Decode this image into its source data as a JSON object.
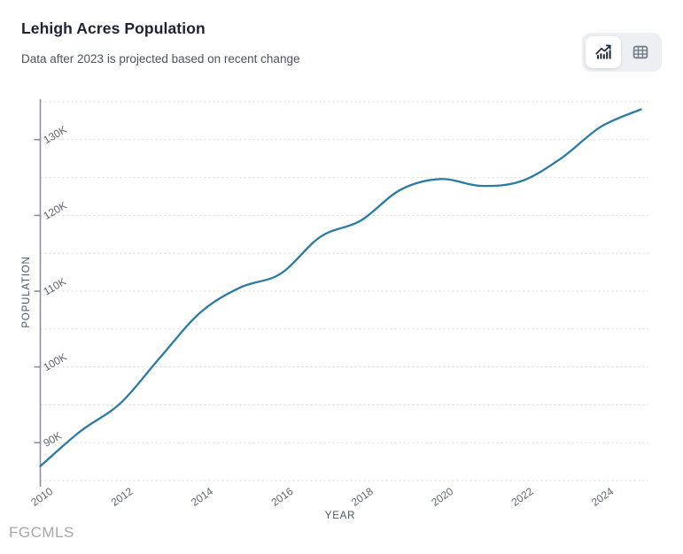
{
  "header": {
    "title": "Lehigh Acres Population",
    "subtitle": "Data after 2023 is projected based on recent change"
  },
  "toolbar": {
    "chart_view_icon": "line-chart-icon",
    "table_view_icon": "table-icon",
    "selected_view": "chart"
  },
  "watermark": "FGCMLS",
  "colors": {
    "line": "#2a7ca6",
    "grid": "#d9d9d9",
    "axis": "#8b919a",
    "tick_text": "#5f6670",
    "axis_title_text": "#4b5563",
    "title_text": "#1b2433",
    "subtitle_text": "#4a5260",
    "toolbar_bg": "#edeff3",
    "icon_dark": "#1f2937",
    "icon_gray": "#737b87",
    "watermark_text": "#a8a8a8"
  },
  "chart_data": {
    "type": "line",
    "title": "Lehigh Acres Population",
    "subtitle_note": "Data after 2023 is projected based on recent change",
    "xlabel": "YEAR",
    "ylabel": "POPULATION",
    "x": [
      2010,
      2011,
      2012,
      2013,
      2014,
      2015,
      2016,
      2017,
      2018,
      2019,
      2020,
      2021,
      2022,
      2023,
      2024,
      2025
    ],
    "series": [
      {
        "name": "Population",
        "values": [
          86900,
          91500,
          95200,
          101300,
          107200,
          110500,
          112300,
          117200,
          119300,
          123400,
          124800,
          123900,
          124500,
          127500,
          131700,
          134000
        ]
      }
    ],
    "xlim": [
      2010,
      2025
    ],
    "ylim": [
      85000,
      135000
    ],
    "x_tick_labels": [
      "2010",
      "2012",
      "2014",
      "2016",
      "2018",
      "2020",
      "2022",
      "2024"
    ],
    "x_tick_values": [
      2010,
      2012,
      2014,
      2016,
      2018,
      2020,
      2022,
      2024
    ],
    "y_tick_labels": [
      "90K",
      "100K",
      "110K",
      "120K",
      "130K"
    ],
    "y_tick_values": [
      90000,
      100000,
      110000,
      120000,
      130000
    ],
    "grid": "horizontal dotted every 5000",
    "legend": "none",
    "projected_after": 2023
  }
}
